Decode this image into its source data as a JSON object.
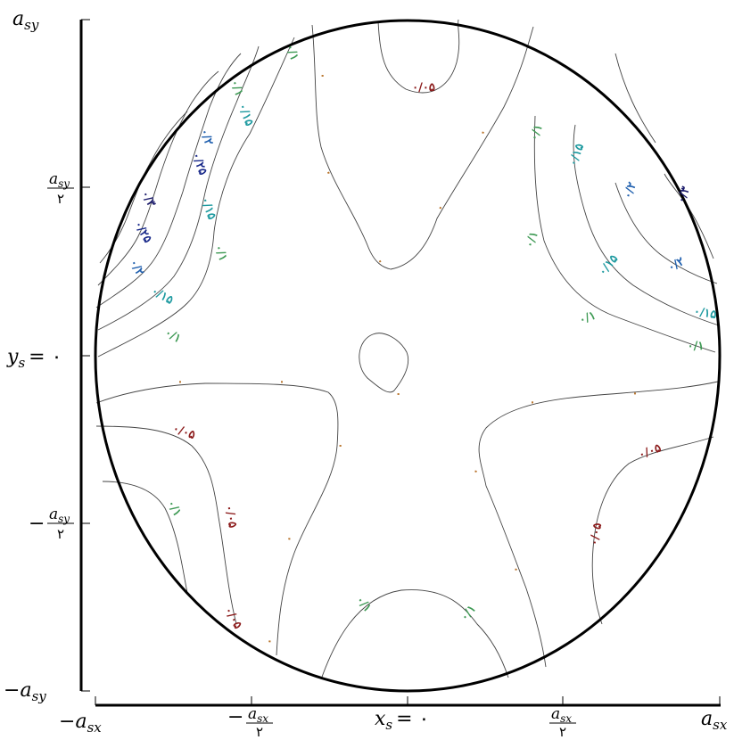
{
  "figure": {
    "y_axis": {
      "ticks": [
        {
          "id": "top",
          "text": "a_sy",
          "main": "a",
          "sub": "sy",
          "sign": "",
          "den": ""
        },
        {
          "id": "half",
          "text": "a_sy/٢",
          "main": "a",
          "sub": "sy",
          "sign": "",
          "den": "٢"
        },
        {
          "id": "zero",
          "text": "y_s = ۰",
          "main": "y",
          "sub": "s",
          "eq": "= ۰"
        },
        {
          "id": "neghalf",
          "text": "−a_sy/٢",
          "main": "a",
          "sub": "sy",
          "sign": "−",
          "den": "٢"
        },
        {
          "id": "bottom",
          "text": "−a_sy",
          "main": "a",
          "sub": "sy",
          "sign": "−",
          "den": ""
        }
      ]
    },
    "x_axis": {
      "ticks": [
        {
          "id": "left",
          "text": "−a_sx",
          "main": "a",
          "sub": "sx",
          "sign": "−",
          "den": ""
        },
        {
          "id": "neghalf",
          "text": "−a_sx/٢",
          "main": "a",
          "sub": "sx",
          "sign": "−",
          "den": "٢"
        },
        {
          "id": "zero",
          "text": "x_s = ۰",
          "main": "x",
          "sub": "s",
          "eq": "= ۰"
        },
        {
          "id": "half",
          "text": "a_sx/٢",
          "main": "a",
          "sub": "sx",
          "sign": "",
          "den": "٢"
        },
        {
          "id": "right",
          "text": "a_sx",
          "main": "a",
          "sub": "sx",
          "sign": "",
          "den": ""
        }
      ]
    },
    "contour_labels": [
      "۰",
      "۰/۱",
      "۰/۰۵",
      "۰/۱۵",
      "۰/۲",
      "۰/۲۵",
      "۰/۳"
    ],
    "colors": {
      "0": "#b8732a",
      "0.05": "#8b1a1a",
      "0.1": "#3f9a55",
      "0.15": "#1e9aa0",
      "0.2": "#1f5fae",
      "0.25": "#1a2a8a",
      "0.3": "#1a1a6a",
      "boundary": "#000000",
      "contour": "#444444"
    }
  }
}
